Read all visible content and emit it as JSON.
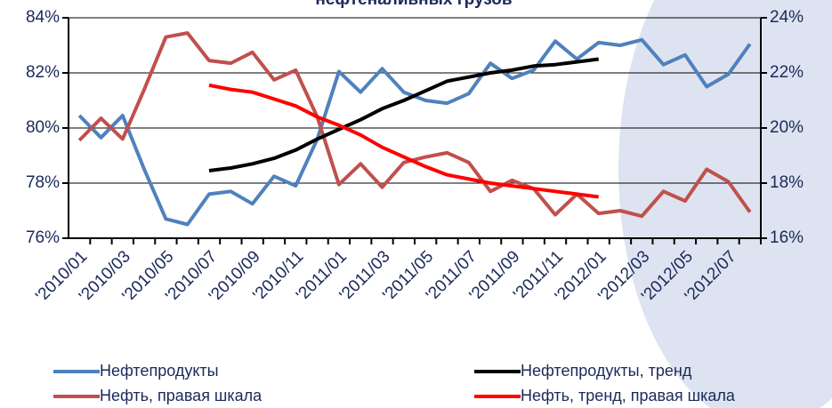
{
  "chart_data": {
    "type": "line",
    "title": "нефтеналивных грузов",
    "categories": [
      "'2010/01",
      null,
      "'2010/03",
      null,
      "'2010/05",
      null,
      "'2010/07",
      null,
      "'2010/09",
      null,
      "'2010/11",
      null,
      "'2011/01",
      null,
      "'2011/03",
      null,
      "'2011/05",
      null,
      "'2011/07",
      null,
      "'2011/09",
      null,
      "'2011/11",
      null,
      "'2012/01",
      null,
      "'2012/03",
      null,
      "'2012/05",
      null,
      "'2012/07",
      null
    ],
    "series": [
      {
        "name": "Нефтепродукты",
        "color": "#4f81bd",
        "values": [
          80.45,
          79.65,
          80.45,
          78.5,
          76.7,
          76.5,
          77.6,
          77.7,
          77.25,
          78.25,
          77.9,
          79.6,
          82.05,
          81.3,
          82.15,
          81.3,
          81.0,
          80.9,
          81.25,
          82.35,
          81.8,
          82.1,
          83.15,
          82.5,
          83.1,
          83.0,
          83.2,
          82.3,
          82.65,
          81.5,
          81.95,
          83.05
        ]
      },
      {
        "name": "Нефть, правая шкала",
        "color": "#c0504d",
        "axis": "y2",
        "values": [
          19.55,
          20.35,
          19.6,
          21.4,
          23.3,
          23.45,
          22.45,
          22.35,
          22.75,
          21.75,
          22.1,
          20.4,
          17.95,
          18.7,
          17.85,
          18.75,
          18.95,
          19.1,
          18.75,
          17.7,
          18.1,
          17.8,
          16.85,
          17.6,
          16.9,
          17.0,
          16.8,
          17.7,
          17.35,
          18.5,
          18.05,
          16.95
        ]
      },
      {
        "name": "Нефтепродукты, тренд",
        "color": "#000000",
        "values": [
          null,
          null,
          null,
          null,
          null,
          null,
          78.45,
          78.55,
          78.7,
          78.9,
          79.2,
          79.6,
          79.95,
          80.3,
          80.7,
          81.0,
          81.35,
          81.7,
          81.85,
          82.0,
          82.1,
          82.25,
          82.3,
          82.4,
          82.5,
          null,
          null,
          null,
          null,
          null,
          null,
          null
        ]
      },
      {
        "name": "Нефть, тренд, правая шкала",
        "color": "#ff0000",
        "axis": "y2",
        "values": [
          null,
          null,
          null,
          null,
          null,
          null,
          21.55,
          21.4,
          21.3,
          21.05,
          20.8,
          20.4,
          20.1,
          19.75,
          19.3,
          18.95,
          18.6,
          18.3,
          18.15,
          18.0,
          17.9,
          17.8,
          17.7,
          17.6,
          17.5,
          null,
          null,
          null,
          null,
          null,
          null,
          null
        ]
      }
    ],
    "ylim": [
      76,
      84
    ],
    "yticks": [
      {
        "value": 76,
        "label": "76%"
      },
      {
        "value": 78,
        "label": "78%"
      },
      {
        "value": 80,
        "label": "80%"
      },
      {
        "value": 82,
        "label": "82%"
      },
      {
        "value": 84,
        "label": "84%"
      }
    ],
    "y2lim": [
      16,
      24
    ],
    "y2ticks": [
      {
        "value": 16,
        "label": "16%"
      },
      {
        "value": 18,
        "label": "18%"
      },
      {
        "value": 20,
        "label": "20%"
      },
      {
        "value": 22,
        "label": "22%"
      },
      {
        "value": 24,
        "label": "24%"
      }
    ],
    "grid": true
  }
}
